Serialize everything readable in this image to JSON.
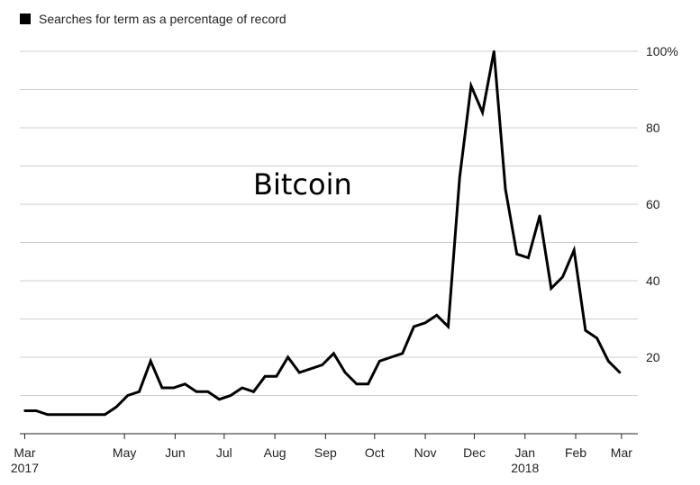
{
  "chart_data": {
    "type": "line",
    "title": "",
    "legend": {
      "label": "Searches for term as a percentage of record",
      "color": "#000000",
      "placement": "top-left"
    },
    "annotation": "Bitcoin",
    "xlabel": "",
    "ylabel": "",
    "ylim": [
      0,
      100
    ],
    "grid": true,
    "y_ticks": [
      {
        "value": 20,
        "label": "20"
      },
      {
        "value": 40,
        "label": "40"
      },
      {
        "value": 60,
        "label": "60"
      },
      {
        "value": 80,
        "label": "80"
      },
      {
        "value": 100,
        "label": "100%"
      }
    ],
    "x_ticks": [
      {
        "date": "2017-03-01",
        "label": "Mar",
        "year": "2017"
      },
      {
        "date": "2017-05-01",
        "label": "May",
        "year": ""
      },
      {
        "date": "2017-06-01",
        "label": "Jun",
        "year": ""
      },
      {
        "date": "2017-07-01",
        "label": "Jul",
        "year": ""
      },
      {
        "date": "2017-08-01",
        "label": "Aug",
        "year": ""
      },
      {
        "date": "2017-09-01",
        "label": "Sep",
        "year": ""
      },
      {
        "date": "2017-10-01",
        "label": "Oct",
        "year": ""
      },
      {
        "date": "2017-11-01",
        "label": "Nov",
        "year": ""
      },
      {
        "date": "2017-12-01",
        "label": "Dec",
        "year": ""
      },
      {
        "date": "2018-01-01",
        "label": "Jan",
        "year": "2018"
      },
      {
        "date": "2018-02-01",
        "label": "Feb",
        "year": ""
      },
      {
        "date": "2018-03-01",
        "label": "Mar",
        "year": ""
      }
    ],
    "x_range": [
      "2017-02-26",
      "2018-03-11"
    ],
    "series": [
      {
        "color": "#000000",
        "points": [
          [
            "2017-03-01",
            6
          ],
          [
            "2017-03-08",
            6
          ],
          [
            "2017-03-15",
            5
          ],
          [
            "2017-03-22",
            5
          ],
          [
            "2017-03-29",
            5
          ],
          [
            "2017-04-05",
            5
          ],
          [
            "2017-04-12",
            5
          ],
          [
            "2017-04-19",
            5
          ],
          [
            "2017-04-26",
            7
          ],
          [
            "2017-05-03",
            10
          ],
          [
            "2017-05-10",
            11
          ],
          [
            "2017-05-17",
            19
          ],
          [
            "2017-05-24",
            12
          ],
          [
            "2017-05-31",
            12
          ],
          [
            "2017-06-07",
            13
          ],
          [
            "2017-06-14",
            11
          ],
          [
            "2017-06-21",
            11
          ],
          [
            "2017-06-28",
            9
          ],
          [
            "2017-07-05",
            10
          ],
          [
            "2017-07-12",
            12
          ],
          [
            "2017-07-19",
            11
          ],
          [
            "2017-07-26",
            15
          ],
          [
            "2017-08-02",
            15
          ],
          [
            "2017-08-09",
            20
          ],
          [
            "2017-08-16",
            16
          ],
          [
            "2017-08-23",
            17
          ],
          [
            "2017-08-30",
            18
          ],
          [
            "2017-09-06",
            21
          ],
          [
            "2017-09-13",
            16
          ],
          [
            "2017-09-20",
            13
          ],
          [
            "2017-09-27",
            13
          ],
          [
            "2017-10-04",
            19
          ],
          [
            "2017-10-11",
            20
          ],
          [
            "2017-10-18",
            21
          ],
          [
            "2017-10-25",
            28
          ],
          [
            "2017-11-01",
            29
          ],
          [
            "2017-11-08",
            31
          ],
          [
            "2017-11-15",
            28
          ],
          [
            "2017-11-22",
            67
          ],
          [
            "2017-11-29",
            91
          ],
          [
            "2017-12-06",
            84
          ],
          [
            "2017-12-13",
            100
          ],
          [
            "2017-12-20",
            64
          ],
          [
            "2017-12-27",
            47
          ],
          [
            "2018-01-03",
            46
          ],
          [
            "2018-01-10",
            57
          ],
          [
            "2018-01-17",
            38
          ],
          [
            "2018-01-24",
            41
          ],
          [
            "2018-01-31",
            48
          ],
          [
            "2018-02-07",
            27
          ],
          [
            "2018-02-14",
            25
          ],
          [
            "2018-02-21",
            19
          ],
          [
            "2018-02-28",
            16
          ]
        ]
      }
    ]
  }
}
